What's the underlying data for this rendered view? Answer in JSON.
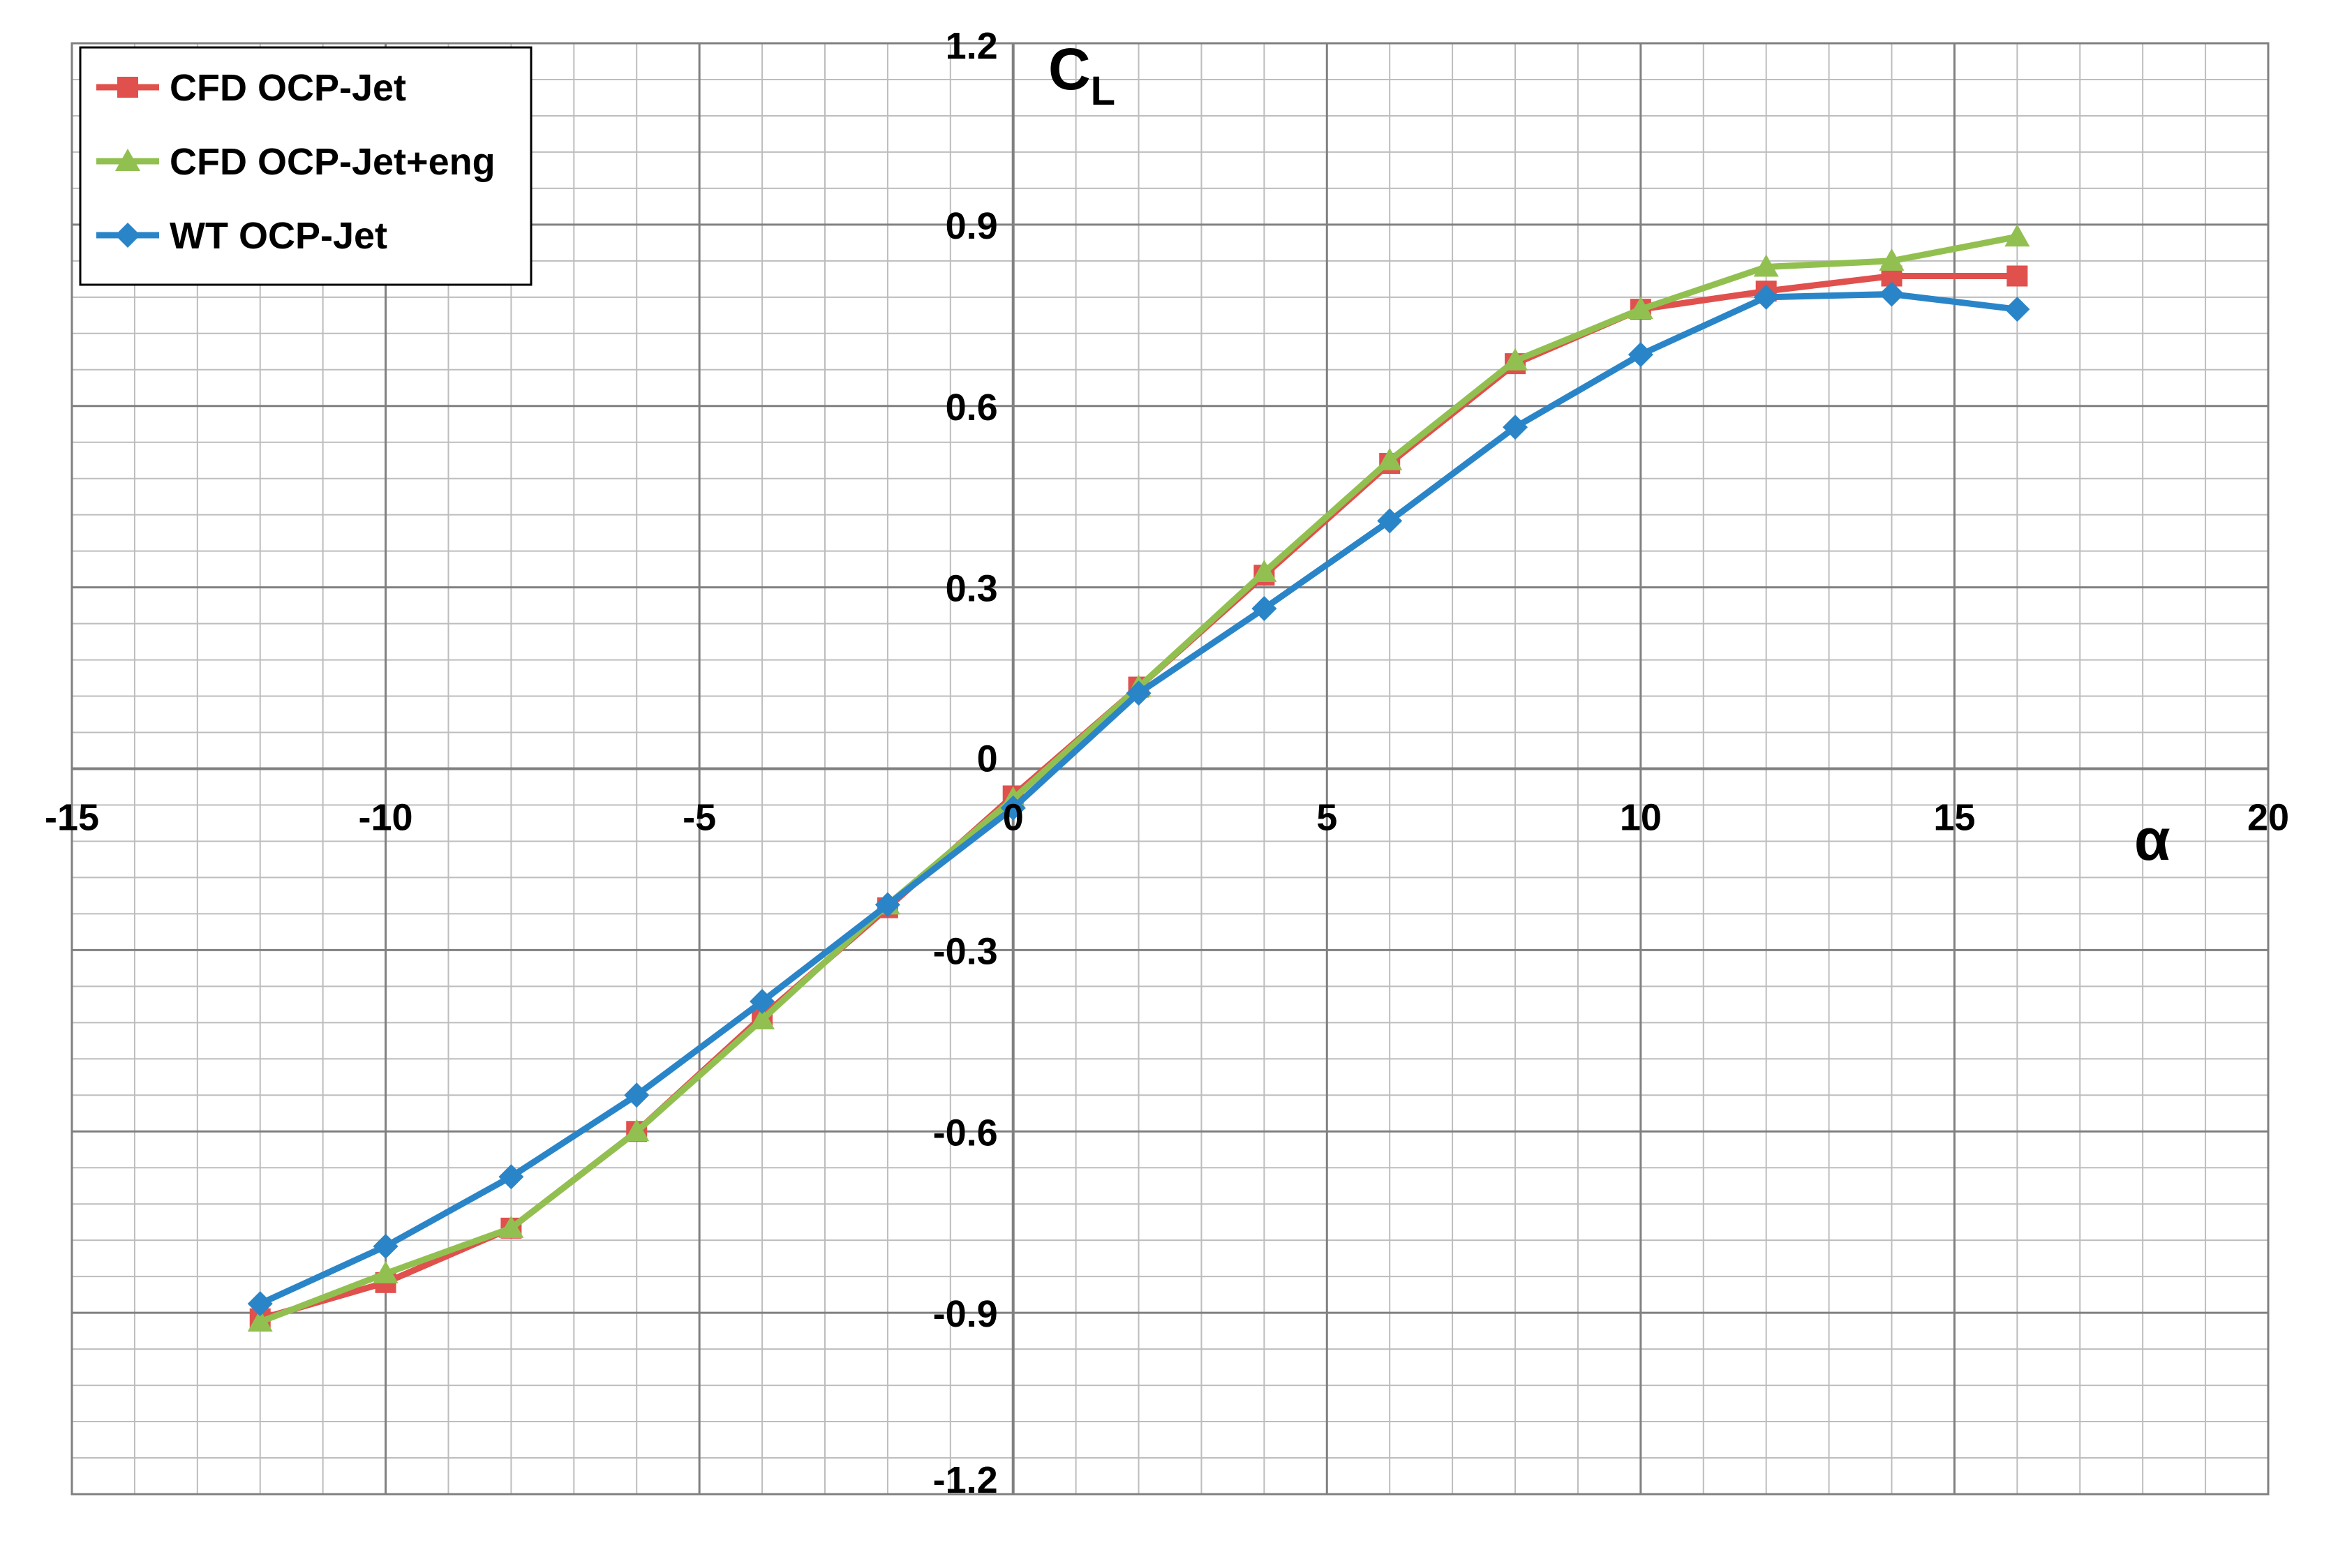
{
  "chart_data": {
    "type": "line",
    "title": "",
    "xlabel": "α",
    "ylabel_main": "C",
    "ylabel_sub": "L",
    "xlim": [
      -15,
      20
    ],
    "ylim": [
      -1.2,
      1.2
    ],
    "x_ticks": [
      -15,
      -10,
      -5,
      0,
      5,
      10,
      15,
      20
    ],
    "x_tick_labels": [
      "-15",
      "-10",
      "-5",
      "0",
      "5",
      "10",
      "15",
      "20"
    ],
    "y_ticks": [
      -1.2,
      -0.9,
      -0.6,
      -0.3,
      0,
      0.3,
      0.6,
      0.9,
      1.2
    ],
    "y_tick_labels": [
      "-1.2",
      "-0.9",
      "-0.6",
      "-0.3",
      "0",
      "0.3",
      "0.6",
      "0.9",
      "1.2"
    ],
    "x_minor_step": 1,
    "y_minor_step": 0.06,
    "grid": true,
    "legend_position": "top-left",
    "series": [
      {
        "name": "CFD OCP-Jet",
        "color": "#e0504d",
        "marker": "square",
        "x": [
          -12,
          -10,
          -8,
          -6,
          -4,
          -2,
          0,
          2,
          4,
          6,
          8,
          10,
          12,
          14,
          16
        ],
        "y": [
          -0.91,
          -0.85,
          -0.76,
          -0.6,
          -0.41,
          -0.23,
          -0.045,
          0.135,
          0.32,
          0.505,
          0.67,
          0.76,
          0.79,
          0.815,
          0.815
        ]
      },
      {
        "name": "CFD OCP-Jet+eng",
        "color": "#92c050",
        "marker": "triangle",
        "x": [
          -12,
          -10,
          -8,
          -6,
          -4,
          -2,
          0,
          2,
          4,
          6,
          8,
          10,
          12,
          14,
          16
        ],
        "y": [
          -0.915,
          -0.835,
          -0.76,
          -0.6,
          -0.415,
          -0.225,
          -0.05,
          0.135,
          0.325,
          0.51,
          0.675,
          0.76,
          0.83,
          0.84,
          0.88
        ]
      },
      {
        "name": "WT OCP-Jet",
        "color": "#2a85c8",
        "marker": "diamond",
        "x": [
          -12,
          -10,
          -8,
          -6,
          -4,
          -2,
          0,
          2,
          4,
          6,
          8,
          10,
          12,
          14,
          16
        ],
        "y": [
          -0.885,
          -0.79,
          -0.675,
          -0.54,
          -0.385,
          -0.225,
          -0.065,
          0.125,
          0.265,
          0.41,
          0.565,
          0.685,
          0.78,
          0.785,
          0.76
        ]
      }
    ]
  }
}
